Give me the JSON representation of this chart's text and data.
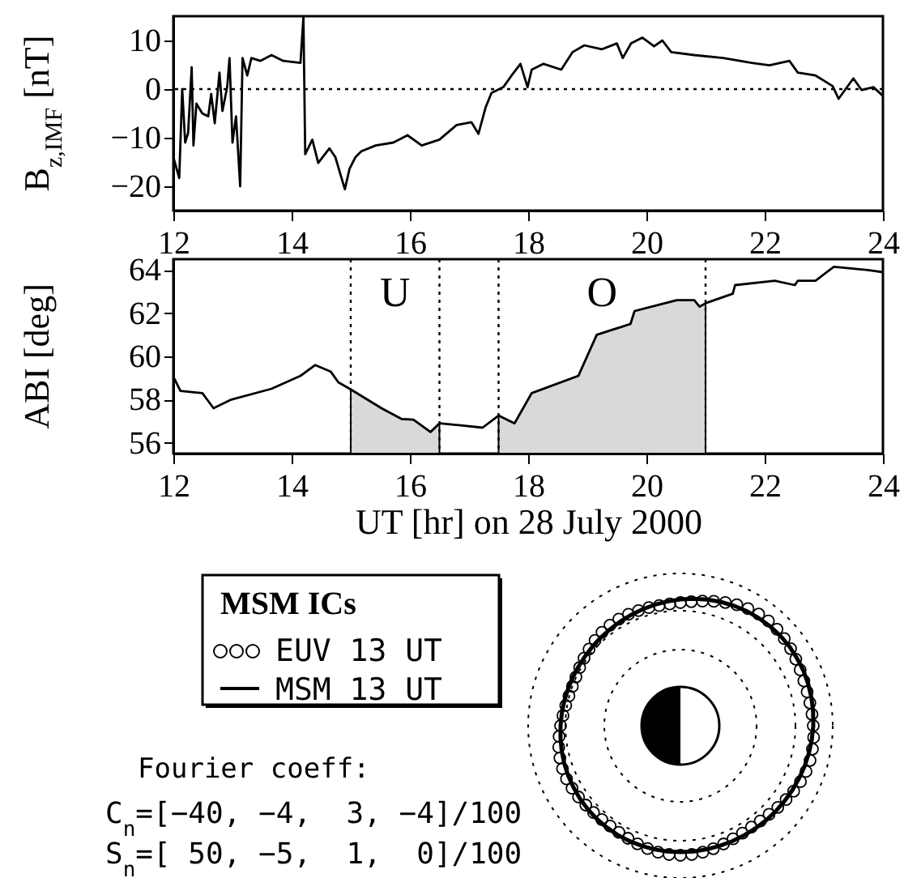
{
  "chart_data": [
    {
      "type": "line",
      "ylabel": "B$_{z,IMF}$ [nT]",
      "color": "#000000",
      "grid": false,
      "xlim": [
        12,
        24
      ],
      "xticks": [
        12,
        14,
        16,
        18,
        20,
        22,
        24
      ],
      "ylim": [
        -25,
        15
      ],
      "yticks": [
        -20,
        -10,
        0,
        10
      ],
      "x": [
        12.0,
        12.1,
        12.15,
        12.2,
        12.25,
        12.31,
        12.34,
        12.39,
        12.49,
        12.59,
        12.64,
        12.7,
        12.78,
        12.83,
        12.91,
        12.95,
        13.0,
        13.06,
        13.13,
        13.17,
        13.25,
        13.32,
        13.47,
        13.66,
        13.86,
        14.15,
        14.2,
        14.23,
        14.35,
        14.45,
        14.64,
        14.74,
        14.9,
        14.98,
        15.08,
        15.18,
        15.42,
        15.72,
        15.96,
        16.2,
        16.5,
        16.79,
        17.04,
        17.16,
        17.28,
        17.38,
        17.58,
        17.72,
        17.87,
        17.99,
        18.06,
        18.26,
        18.56,
        18.75,
        18.95,
        19.25,
        19.5,
        19.6,
        19.74,
        19.93,
        20.13,
        20.27,
        20.42,
        20.81,
        21.3,
        21.78,
        22.08,
        22.42,
        22.56,
        22.86,
        23.15,
        23.25,
        23.5,
        23.64,
        23.84,
        24.0
      ],
      "values": [
        -14,
        -18.3,
        0,
        -11,
        -9,
        4.5,
        -11.6,
        -3,
        -5,
        -5.6,
        -1,
        -7,
        3.4,
        -4.5,
        0.4,
        6.4,
        -11,
        -5.6,
        -20,
        6.4,
        2.8,
        6.4,
        5.8,
        7,
        5.8,
        5.4,
        14.8,
        -13.4,
        -10.4,
        -15.2,
        -12.2,
        -14,
        -20.6,
        -16.4,
        -14,
        -12.8,
        -11.6,
        -11,
        -9.5,
        -11.6,
        -10.4,
        -7.4,
        -6.8,
        -9.2,
        -3.8,
        -0.8,
        0.4,
        2.8,
        5.2,
        0.4,
        4,
        5.2,
        4,
        7.6,
        9,
        8.2,
        9.4,
        6.4,
        9.4,
        10.6,
        8.8,
        10,
        7.6,
        7,
        6.4,
        5.4,
        4.9,
        5.8,
        3.4,
        2.8,
        0.6,
        -2,
        2.2,
        -0.2,
        0.4,
        -1.4
      ],
      "ref_lines": [
        {
          "axis": "y",
          "value": 0,
          "line_style": "dotted"
        }
      ]
    },
    {
      "type": "line",
      "xlabel": "UT [hr] on 28 July 2000",
      "ylabel": "ABI [deg]",
      "grid": false,
      "xlim": [
        12,
        24
      ],
      "xticks": [
        12,
        14,
        16,
        18,
        20,
        22,
        24
      ],
      "ylim": [
        55.5,
        64.5
      ],
      "yticks": [
        56,
        58,
        60,
        62,
        64
      ],
      "series": [
        {
          "type": "area",
          "color": "#d9d9d9",
          "x": [
            15.0,
            15.52,
            15.86,
            16.06,
            16.35,
            16.5
          ],
          "values": [
            58.47,
            57.6,
            57.1,
            57.07,
            56.5,
            56.9
          ]
        },
        {
          "type": "area",
          "color": "#d9d9d9",
          "x": [
            17.5,
            17.77,
            18.06,
            18.85,
            19.16,
            19.73,
            19.8,
            20.51,
            20.81,
            20.9,
            21.0
          ],
          "values": [
            57.26,
            56.9,
            58.3,
            59.1,
            61.0,
            61.5,
            62.1,
            62.6,
            62.6,
            62.3,
            62.46
          ]
        },
        {
          "type": "line",
          "color": "#000000",
          "x": [
            12.0,
            12.12,
            12.49,
            12.68,
            12.98,
            13.66,
            14.15,
            14.4,
            14.66,
            14.79,
            15.0,
            15.52,
            15.86,
            16.06,
            16.35,
            16.5,
            16.89,
            17.23,
            17.5,
            17.77,
            18.06,
            18.85,
            19.16,
            19.73,
            19.8,
            20.51,
            20.81,
            20.9,
            21.0,
            21.46,
            21.5,
            22.17,
            22.51,
            22.56,
            22.86,
            23.17,
            23.74,
            24.0
          ],
          "values": [
            59.06,
            58.4,
            58.3,
            57.6,
            58.0,
            58.5,
            59.1,
            59.6,
            59.3,
            58.8,
            58.47,
            57.6,
            57.1,
            57.07,
            56.5,
            56.9,
            56.8,
            56.7,
            57.26,
            56.9,
            58.3,
            59.1,
            61.0,
            61.5,
            62.1,
            62.6,
            62.6,
            62.3,
            62.46,
            62.9,
            63.3,
            63.5,
            63.3,
            63.5,
            63.5,
            64.15,
            64.0,
            63.9
          ]
        }
      ],
      "ref_lines": [
        {
          "axis": "x",
          "value": 15,
          "line_style": "dotted"
        },
        {
          "axis": "x",
          "value": 16.5,
          "line_style": "dotted"
        },
        {
          "axis": "x",
          "value": 17.5,
          "line_style": "dotted"
        },
        {
          "axis": "x",
          "value": 21,
          "line_style": "dotted"
        }
      ],
      "annotations": [
        "U",
        "O"
      ]
    },
    {
      "type": "other",
      "legend_title": "MSM ICs",
      "annotations": [
        "EUV 13 UT",
        "MSM 13 UT",
        "Fourier coeff:",
        "C$_{n}$=[−40, −4,  3, −4]/100",
        "S$_{n}$=[ 50, −5,  1,  0]/100"
      ]
    }
  ]
}
